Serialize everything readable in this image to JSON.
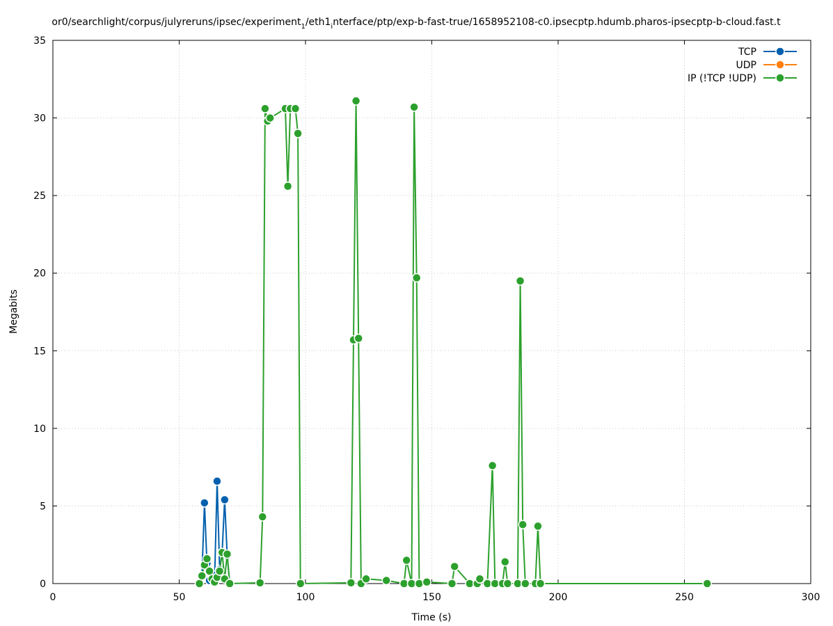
{
  "chart_data": {
    "type": "line",
    "title": "or0/searchlight/corpus/julyreruns/ipsec/experiment",
    "title_sub1": "1",
    "title_mid": "/eth1",
    "title_sub2": "i",
    "title_tail": "nterface/ptp/exp-b-fast-true/1658952108-c0.ipsecptp.hdumb.pharos-ipsecptp-b-cloud.fast.t",
    "xlabel": "Time (s)",
    "ylabel": "Megabits",
    "xlim": [
      0,
      300
    ],
    "ylim": [
      0,
      35
    ],
    "xticks": [
      0,
      50,
      100,
      150,
      200,
      250,
      300
    ],
    "yticks": [
      0,
      5,
      10,
      15,
      20,
      25,
      30,
      35
    ],
    "grid": true,
    "legend_position": "top-right",
    "series": [
      {
        "name": "TCP",
        "color": "#0060ad",
        "x": [
          58.0,
          59.0,
          60.0,
          61.0,
          62.0,
          63.0,
          64.0,
          65.0,
          66.0,
          67.0,
          68.0,
          69.0,
          70.0
        ],
        "y": [
          0.0,
          0.5,
          5.2,
          1.3,
          0.2,
          0.6,
          0.1,
          6.6,
          0.9,
          2.0,
          5.4,
          1.8,
          0.0
        ]
      },
      {
        "name": "UDP",
        "color": "#ff7f0e",
        "x": [],
        "y": []
      },
      {
        "name": "IP (!TCP  !UDP)",
        "color": "#2ca02c",
        "x": [
          58.0,
          59.0,
          60.0,
          61.0,
          62.0,
          63.0,
          64.0,
          65.0,
          66.0,
          67.0,
          68.0,
          69.0,
          70.0,
          82.0,
          83.0,
          84.0,
          85.0,
          86.0,
          92.0,
          93.0,
          94.0,
          96.0,
          97.0,
          98.0,
          118.0,
          119.0,
          120.0,
          121.0,
          122.0,
          124.0,
          132.0,
          139.0,
          140.0,
          142.0,
          143.0,
          144.0,
          145.0,
          148.0,
          158.0,
          159.0,
          165.0,
          168.0,
          169.0,
          172.0,
          174.0,
          175.0,
          178.0,
          179.0,
          180.0,
          184.0,
          185.0,
          186.0,
          187.0,
          191.0,
          192.0,
          193.0,
          259.0
        ],
        "y": [
          0.0,
          0.5,
          1.2,
          1.6,
          0.8,
          0.3,
          0.1,
          0.4,
          0.8,
          2.0,
          0.3,
          1.9,
          0.0,
          0.05,
          4.3,
          30.6,
          29.8,
          30.0,
          30.6,
          25.6,
          30.6,
          30.6,
          29.0,
          0.0,
          0.05,
          15.7,
          31.1,
          15.8,
          0.0,
          0.3,
          0.2,
          0.0,
          1.5,
          0.0,
          30.7,
          19.7,
          0.0,
          0.1,
          0.0,
          1.1,
          0.0,
          0.0,
          0.3,
          0.0,
          7.6,
          0.0,
          0.0,
          1.4,
          0.0,
          0.0,
          19.5,
          3.8,
          0.0,
          0.0,
          3.7,
          0.0,
          0.0
        ]
      }
    ]
  }
}
